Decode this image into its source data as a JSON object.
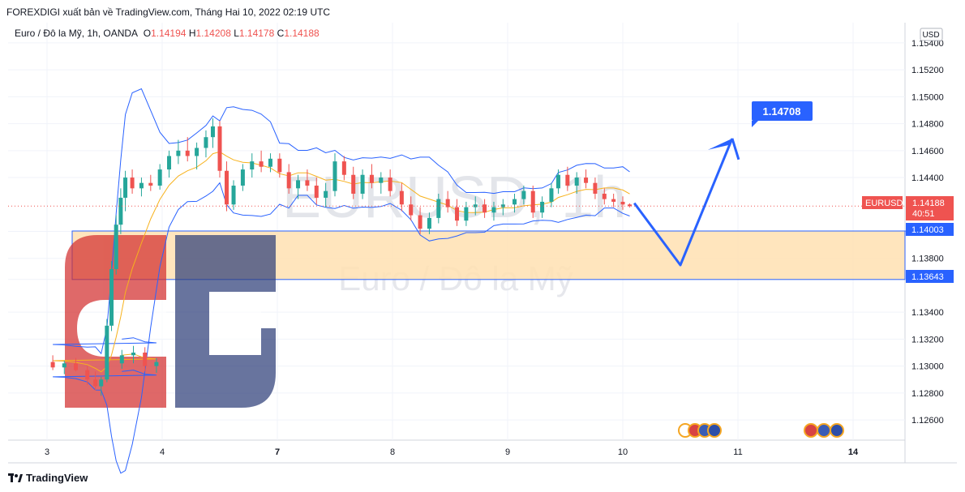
{
  "header": {
    "publish_line": "FOREXDIGI xuất bản về TradingView.com, Tháng Hai 10, 2022 02:19 UTC"
  },
  "legend": {
    "symbol": "Euro / Đô la Mỹ, 1h, OANDA",
    "o_label": "O",
    "o_value": "1.14194",
    "h_label": "H",
    "h_value": "1.14208",
    "l_label": "L",
    "l_value": "1.14178",
    "c_label": "C",
    "c_value": "1.14188"
  },
  "watermark": {
    "ticker": "EURUSD, 1h",
    "name": "Euro / Đô la Mỹ"
  },
  "footer": {
    "brand": "TradingView"
  },
  "colors": {
    "up": "#26a69a",
    "down": "#ef5350",
    "band": "#2962ff",
    "ma": "#f7b21d",
    "zone": "#ffe0b2",
    "arrow": "#2962ff"
  },
  "chart_data": {
    "type": "candlestick",
    "currency": "USD",
    "x_ticks": [
      "3",
      "4",
      "7",
      "8",
      "9",
      "10",
      "11",
      "14"
    ],
    "y_ticks": [
      "1.15400",
      "1.15200",
      "1.15000",
      "1.14800",
      "1.14600",
      "1.14400",
      "1.14000",
      "1.13800",
      "1.13643",
      "1.13400",
      "1.13200",
      "1.13000",
      "1.12800",
      "1.12600"
    ],
    "ylim": [
      1.1245,
      1.1555
    ],
    "current_price": {
      "label": "EURUSD",
      "value": "1.14188",
      "countdown": "40:51",
      "price": 1.14188
    },
    "zone": {
      "top": 1.14003,
      "bottom": 1.13643,
      "top_label": "1.14003",
      "bottom_label": "1.13643"
    },
    "projection": {
      "target_label": "1.14708",
      "path": [
        {
          "t": 10.1,
          "price": 1.1421
        },
        {
          "t": 10.5,
          "price": 1.1375
        },
        {
          "t": 10.95,
          "price": 1.1469
        }
      ]
    },
    "candles": [
      {
        "t": 2.65,
        "o": 1.1302,
        "h": 1.1312,
        "l": 1.1298,
        "c": 1.1308
      },
      {
        "t": 2.75,
        "o": 1.1308,
        "h": 1.1315,
        "l": 1.1302,
        "c": 1.131
      },
      {
        "t": 2.85,
        "o": 1.131,
        "h": 1.1314,
        "l": 1.1296,
        "c": 1.13
      },
      {
        "t": 2.95,
        "o": 1.13,
        "h": 1.1306,
        "l": 1.1295,
        "c": 1.1303
      },
      {
        "t": 3.05,
        "o": 1.1303,
        "h": 1.1308,
        "l": 1.1297,
        "c": 1.1299
      },
      {
        "t": 3.15,
        "o": 1.1299,
        "h": 1.1304,
        "l": 1.1294,
        "c": 1.1302
      },
      {
        "t": 3.25,
        "o": 1.1302,
        "h": 1.1306,
        "l": 1.1296,
        "c": 1.1297
      },
      {
        "t": 3.35,
        "o": 1.1297,
        "h": 1.13,
        "l": 1.1286,
        "c": 1.129
      },
      {
        "t": 3.42,
        "o": 1.129,
        "h": 1.1296,
        "l": 1.1282,
        "c": 1.1285
      },
      {
        "t": 3.47,
        "o": 1.1285,
        "h": 1.1292,
        "l": 1.1278,
        "c": 1.129
      },
      {
        "t": 3.52,
        "o": 1.129,
        "h": 1.1335,
        "l": 1.1288,
        "c": 1.133
      },
      {
        "t": 3.56,
        "o": 1.133,
        "h": 1.1378,
        "l": 1.1326,
        "c": 1.1372
      },
      {
        "t": 3.6,
        "o": 1.1372,
        "h": 1.1412,
        "l": 1.1368,
        "c": 1.1405
      },
      {
        "t": 3.64,
        "o": 1.1405,
        "h": 1.1432,
        "l": 1.1398,
        "c": 1.1425
      },
      {
        "t": 3.68,
        "o": 1.1425,
        "h": 1.1445,
        "l": 1.1415,
        "c": 1.144
      },
      {
        "t": 3.74,
        "o": 1.144,
        "h": 1.1446,
        "l": 1.1428,
        "c": 1.1432
      },
      {
        "t": 3.82,
        "o": 1.1432,
        "h": 1.144,
        "l": 1.1426,
        "c": 1.1436
      },
      {
        "t": 3.9,
        "o": 1.1436,
        "h": 1.1442,
        "l": 1.143,
        "c": 1.1434
      },
      {
        "t": 3.98,
        "o": 1.1434,
        "h": 1.145,
        "l": 1.1431,
        "c": 1.1446
      },
      {
        "t": 4.06,
        "o": 1.1446,
        "h": 1.146,
        "l": 1.144,
        "c": 1.1456
      },
      {
        "t": 4.14,
        "o": 1.1456,
        "h": 1.1468,
        "l": 1.145,
        "c": 1.146
      },
      {
        "t": 4.22,
        "o": 1.146,
        "h": 1.147,
        "l": 1.1452,
        "c": 1.1456
      },
      {
        "t": 4.3,
        "o": 1.1456,
        "h": 1.1466,
        "l": 1.1446,
        "c": 1.1462
      },
      {
        "t": 4.38,
        "o": 1.1462,
        "h": 1.1475,
        "l": 1.1455,
        "c": 1.147
      },
      {
        "t": 4.44,
        "o": 1.147,
        "h": 1.1484,
        "l": 1.1462,
        "c": 1.1478
      },
      {
        "t": 4.5,
        "o": 1.1478,
        "h": 1.1482,
        "l": 1.144,
        "c": 1.1445
      },
      {
        "t": 4.56,
        "o": 1.1445,
        "h": 1.1452,
        "l": 1.1415,
        "c": 1.142
      },
      {
        "t": 4.62,
        "o": 1.142,
        "h": 1.1438,
        "l": 1.1416,
        "c": 1.1434
      },
      {
        "t": 4.7,
        "o": 1.1434,
        "h": 1.145,
        "l": 1.143,
        "c": 1.1446
      },
      {
        "t": 4.78,
        "o": 1.1446,
        "h": 1.1458,
        "l": 1.144,
        "c": 1.1452
      },
      {
        "t": 4.86,
        "o": 1.1452,
        "h": 1.146,
        "l": 1.1444,
        "c": 1.1448
      },
      {
        "t": 4.94,
        "o": 1.1448,
        "h": 1.1458,
        "l": 1.1444,
        "c": 1.1454
      },
      {
        "t": 7.02,
        "o": 1.1454,
        "h": 1.1458,
        "l": 1.144,
        "c": 1.1444
      },
      {
        "t": 7.1,
        "o": 1.1444,
        "h": 1.145,
        "l": 1.1428,
        "c": 1.1432
      },
      {
        "t": 7.18,
        "o": 1.1432,
        "h": 1.1442,
        "l": 1.1424,
        "c": 1.1438
      },
      {
        "t": 7.26,
        "o": 1.1438,
        "h": 1.1446,
        "l": 1.143,
        "c": 1.1434
      },
      {
        "t": 7.34,
        "o": 1.1434,
        "h": 1.144,
        "l": 1.142,
        "c": 1.1425
      },
      {
        "t": 7.42,
        "o": 1.1425,
        "h": 1.1436,
        "l": 1.1418,
        "c": 1.143
      },
      {
        "t": 7.5,
        "o": 1.143,
        "h": 1.1458,
        "l": 1.1426,
        "c": 1.1452
      },
      {
        "t": 7.58,
        "o": 1.1452,
        "h": 1.1456,
        "l": 1.1438,
        "c": 1.1442
      },
      {
        "t": 7.66,
        "o": 1.1442,
        "h": 1.1448,
        "l": 1.1424,
        "c": 1.1428
      },
      {
        "t": 7.74,
        "o": 1.1428,
        "h": 1.1446,
        "l": 1.1424,
        "c": 1.1442
      },
      {
        "t": 7.82,
        "o": 1.1442,
        "h": 1.145,
        "l": 1.1432,
        "c": 1.1436
      },
      {
        "t": 7.9,
        "o": 1.1436,
        "h": 1.1444,
        "l": 1.1428,
        "c": 1.144
      },
      {
        "t": 7.98,
        "o": 1.144,
        "h": 1.1446,
        "l": 1.1426,
        "c": 1.143
      },
      {
        "t": 8.08,
        "o": 1.143,
        "h": 1.1436,
        "l": 1.1415,
        "c": 1.142
      },
      {
        "t": 8.16,
        "o": 1.142,
        "h": 1.1426,
        "l": 1.1408,
        "c": 1.1412
      },
      {
        "t": 8.24,
        "o": 1.1412,
        "h": 1.1418,
        "l": 1.1398,
        "c": 1.1402
      },
      {
        "t": 8.32,
        "o": 1.1402,
        "h": 1.1414,
        "l": 1.1398,
        "c": 1.141
      },
      {
        "t": 8.4,
        "o": 1.141,
        "h": 1.1428,
        "l": 1.1406,
        "c": 1.1424
      },
      {
        "t": 8.48,
        "o": 1.1424,
        "h": 1.143,
        "l": 1.1414,
        "c": 1.1418
      },
      {
        "t": 8.56,
        "o": 1.1418,
        "h": 1.1424,
        "l": 1.1404,
        "c": 1.1408
      },
      {
        "t": 8.64,
        "o": 1.1408,
        "h": 1.1422,
        "l": 1.1404,
        "c": 1.1418
      },
      {
        "t": 8.72,
        "o": 1.1418,
        "h": 1.1426,
        "l": 1.1412,
        "c": 1.142
      },
      {
        "t": 8.8,
        "o": 1.142,
        "h": 1.1424,
        "l": 1.141,
        "c": 1.1414
      },
      {
        "t": 8.88,
        "o": 1.1414,
        "h": 1.1422,
        "l": 1.1408,
        "c": 1.1418
      },
      {
        "t": 8.96,
        "o": 1.1418,
        "h": 1.1424,
        "l": 1.1412,
        "c": 1.142
      },
      {
        "t": 9.06,
        "o": 1.142,
        "h": 1.1428,
        "l": 1.1414,
        "c": 1.1424
      },
      {
        "t": 9.14,
        "o": 1.1424,
        "h": 1.1434,
        "l": 1.142,
        "c": 1.143
      },
      {
        "t": 9.22,
        "o": 1.143,
        "h": 1.1434,
        "l": 1.141,
        "c": 1.1414
      },
      {
        "t": 9.3,
        "o": 1.1414,
        "h": 1.1426,
        "l": 1.141,
        "c": 1.1422
      },
      {
        "t": 9.38,
        "o": 1.1422,
        "h": 1.1436,
        "l": 1.1418,
        "c": 1.1432
      },
      {
        "t": 9.44,
        "o": 1.1432,
        "h": 1.1446,
        "l": 1.1428,
        "c": 1.1442
      },
      {
        "t": 9.52,
        "o": 1.1442,
        "h": 1.1448,
        "l": 1.143,
        "c": 1.1434
      },
      {
        "t": 9.6,
        "o": 1.1434,
        "h": 1.1444,
        "l": 1.1428,
        "c": 1.144
      },
      {
        "t": 9.68,
        "o": 1.144,
        "h": 1.1446,
        "l": 1.1432,
        "c": 1.1436
      },
      {
        "t": 9.76,
        "o": 1.1436,
        "h": 1.144,
        "l": 1.1424,
        "c": 1.1428
      },
      {
        "t": 9.84,
        "o": 1.1428,
        "h": 1.1432,
        "l": 1.142,
        "c": 1.1424
      },
      {
        "t": 9.92,
        "o": 1.1424,
        "h": 1.1428,
        "l": 1.1418,
        "c": 1.1422
      },
      {
        "t": 10.0,
        "o": 1.1422,
        "h": 1.1426,
        "l": 1.1416,
        "c": 1.142
      },
      {
        "t": 10.06,
        "o": 1.142,
        "h": 1.14208,
        "l": 1.14178,
        "c": 1.14188
      }
    ]
  }
}
